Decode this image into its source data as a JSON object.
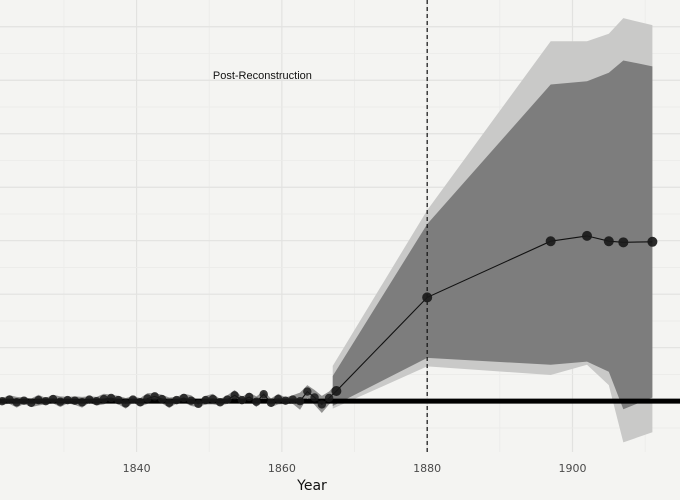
{
  "chart_data": {
    "type": "line",
    "xlabel": "Year",
    "ylabel": "",
    "title": "",
    "xlim": [
      1821.2,
      1914.8
    ],
    "ylim": [
      -0.095,
      0.75
    ],
    "x_ticks": [
      1840,
      1860,
      1880,
      1900
    ],
    "grid": true,
    "legend": "none",
    "annotations": [
      {
        "text": "Post-Reconstruction",
        "x": 1850.5,
        "y": 0.61
      }
    ],
    "reference_lines": {
      "vertical_dashed_x": 1880,
      "horizontal_solid_y": 0
    },
    "series": [
      {
        "points": [
          {
            "x": 1821.5,
            "y": 0.0
          },
          {
            "x": 1822.5,
            "y": 0.003
          },
          {
            "x": 1823.5,
            "y": -0.002
          },
          {
            "x": 1824.5,
            "y": 0.001
          },
          {
            "x": 1825.5,
            "y": -0.003
          },
          {
            "x": 1826.5,
            "y": 0.002
          },
          {
            "x": 1827.5,
            "y": 0.0
          },
          {
            "x": 1828.5,
            "y": 0.004
          },
          {
            "x": 1829.5,
            "y": -0.001
          },
          {
            "x": 1830.5,
            "y": 0.002
          },
          {
            "x": 1831.5,
            "y": 0.001
          },
          {
            "x": 1832.5,
            "y": -0.002
          },
          {
            "x": 1833.5,
            "y": 0.003
          },
          {
            "x": 1834.5,
            "y": 0.0
          },
          {
            "x": 1835.5,
            "y": 0.004
          },
          {
            "x": 1836.5,
            "y": 0.006
          },
          {
            "x": 1837.5,
            "y": 0.002
          },
          {
            "x": 1838.5,
            "y": -0.004
          },
          {
            "x": 1839.5,
            "y": 0.003
          },
          {
            "x": 1840.5,
            "y": -0.002
          },
          {
            "x": 1841.5,
            "y": 0.005
          },
          {
            "x": 1842.5,
            "y": 0.009
          },
          {
            "x": 1843.5,
            "y": 0.004
          },
          {
            "x": 1844.5,
            "y": -0.003
          },
          {
            "x": 1845.5,
            "y": 0.002
          },
          {
            "x": 1846.5,
            "y": 0.006
          },
          {
            "x": 1847.5,
            "y": 0.001
          },
          {
            "x": 1848.5,
            "y": -0.005
          },
          {
            "x": 1849.5,
            "y": 0.002
          },
          {
            "x": 1850.5,
            "y": 0.004
          },
          {
            "x": 1851.5,
            "y": -0.002
          },
          {
            "x": 1852.5,
            "y": 0.003
          },
          {
            "x": 1853.5,
            "y": 0.011
          },
          {
            "x": 1854.5,
            "y": 0.002
          },
          {
            "x": 1855.5,
            "y": 0.008
          },
          {
            "x": 1856.5,
            "y": -0.001
          },
          {
            "x": 1857.5,
            "y": 0.013
          },
          {
            "x": 1858.5,
            "y": -0.003
          },
          {
            "x": 1859.5,
            "y": 0.004
          },
          {
            "x": 1860.5,
            "y": 0.001
          },
          {
            "x": 1861.5,
            "y": 0.003
          },
          {
            "x": 1862.5,
            "y": 0.0
          },
          {
            "x": 1863.5,
            "y": 0.018
          },
          {
            "x": 1864.5,
            "y": 0.007
          },
          {
            "x": 1865.5,
            "y": -0.006
          },
          {
            "x": 1866.5,
            "y": 0.006
          },
          {
            "x": 1867.5,
            "y": 0.019
          },
          {
            "x": 1880.0,
            "y": 0.194
          },
          {
            "x": 1897.0,
            "y": 0.299
          },
          {
            "x": 1902.0,
            "y": 0.309
          },
          {
            "x": 1905.0,
            "y": 0.299
          },
          {
            "x": 1907.0,
            "y": 0.297
          },
          {
            "x": 1911.0,
            "y": 0.298
          }
        ],
        "ci_outer": [
          {
            "x": 1867.0,
            "lo": -0.014,
            "hi": 0.066
          },
          {
            "x": 1880.0,
            "lo": 0.065,
            "hi": 0.357
          },
          {
            "x": 1897.0,
            "lo": 0.049,
            "hi": 0.673
          },
          {
            "x": 1902.0,
            "lo": 0.068,
            "hi": 0.673
          },
          {
            "x": 1905.0,
            "lo": 0.03,
            "hi": 0.687
          },
          {
            "x": 1907.0,
            "lo": -0.077,
            "hi": 0.716
          },
          {
            "x": 1911.0,
            "lo": -0.058,
            "hi": 0.703
          }
        ],
        "ci_inner": [
          {
            "x": 1867.0,
            "lo": -0.009,
            "hi": 0.047
          },
          {
            "x": 1880.0,
            "lo": 0.081,
            "hi": 0.331
          },
          {
            "x": 1897.0,
            "lo": 0.068,
            "hi": 0.592
          },
          {
            "x": 1902.0,
            "lo": 0.074,
            "hi": 0.598
          },
          {
            "x": 1905.0,
            "lo": 0.055,
            "hi": 0.614
          },
          {
            "x": 1907.0,
            "lo": -0.015,
            "hi": 0.637
          },
          {
            "x": 1911.0,
            "lo": 0.007,
            "hi": 0.626
          }
        ]
      }
    ]
  }
}
